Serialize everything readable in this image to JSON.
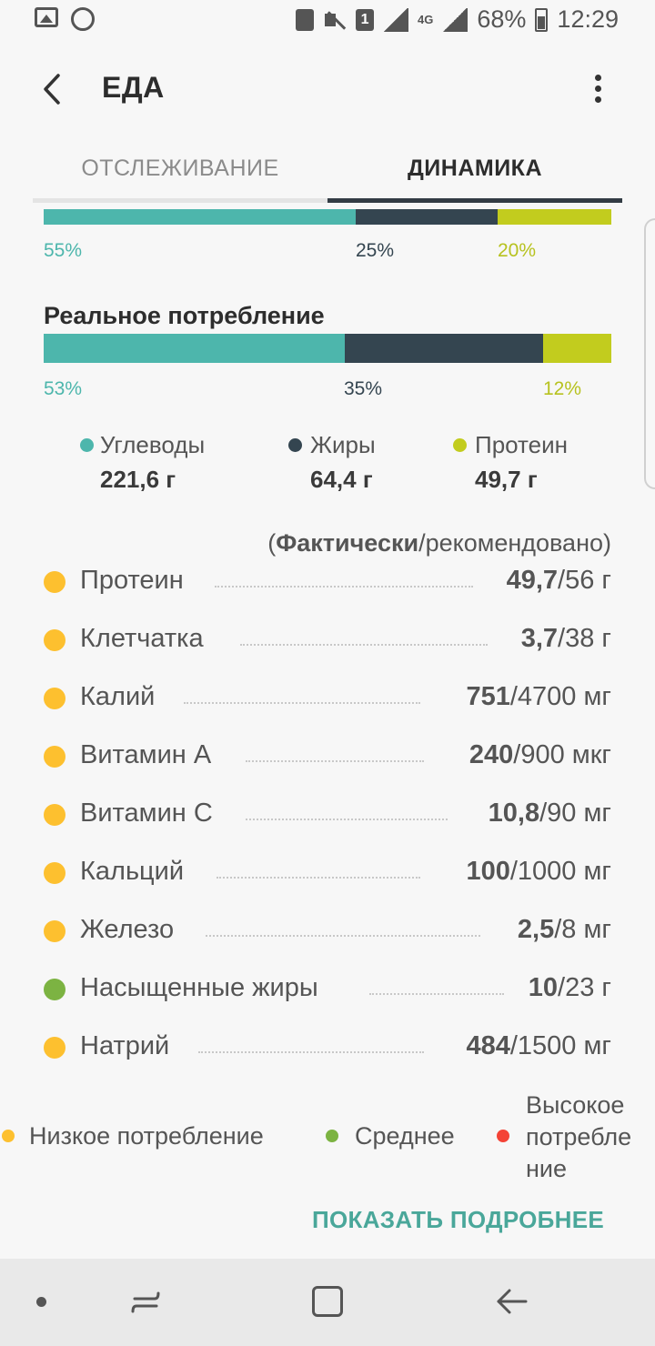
{
  "status_bar": {
    "battery": "68%",
    "time": "12:29",
    "sim": "1",
    "network": "4G"
  },
  "app_bar": {
    "title": "ЕДА"
  },
  "tabs": [
    {
      "label": "ОТСЛЕЖИВАНИЕ",
      "active": false
    },
    {
      "label": "ДИНАМИКА",
      "active": true
    }
  ],
  "recommended_ratio": {
    "carbs_pct": 55,
    "fat_pct": 25,
    "protein_pct": 20,
    "carbs_label": "55%",
    "fat_label": "25%",
    "protein_label": "20%"
  },
  "actual": {
    "title": "Реальное потребление",
    "carbs_pct": 53,
    "fat_pct": 35,
    "protein_pct": 12,
    "carbs_label": "53%",
    "fat_label": "35%",
    "protein_label": "12%"
  },
  "macro_legend": [
    {
      "label": "Углеводы",
      "value": "221,6 г",
      "color": "#4db6ac"
    },
    {
      "label": "Жиры",
      "value": "64,4 г",
      "color": "#344550"
    },
    {
      "label": "Протеин",
      "value": "49,7 г",
      "color": "#c2cc1e"
    }
  ],
  "nutrients_header": {
    "open": "(",
    "actual": "Фактически",
    "rest": "/рекомендовано)"
  },
  "nutrients": [
    {
      "name": "Протеин",
      "actual": "49,7",
      "rec": "/56 г",
      "level": "low"
    },
    {
      "name": "Клетчатка",
      "actual": "3,7",
      "rec": "/38 г",
      "level": "low"
    },
    {
      "name": "Калий",
      "actual": "751",
      "rec": "/4700 мг",
      "level": "low"
    },
    {
      "name": "Витамин A",
      "actual": "240",
      "rec": "/900 мкг",
      "level": "low"
    },
    {
      "name": "Витамин C",
      "actual": "10,8",
      "rec": "/90 мг",
      "level": "low"
    },
    {
      "name": "Кальций",
      "actual": "100",
      "rec": "/1000 мг",
      "level": "low"
    },
    {
      "name": "Железо",
      "actual": "2,5",
      "rec": "/8 мг",
      "level": "low"
    },
    {
      "name": "Насыщенные жиры",
      "actual": "10",
      "rec": "/23 г",
      "level": "mid"
    },
    {
      "name": "Натрий",
      "actual": "484",
      "rec": "/1500 мг",
      "level": "low"
    }
  ],
  "intake_legend": {
    "low": "Низкое потребление",
    "mid": "Среднее",
    "high_line1": "Высокое",
    "high_line2": "потребле",
    "high_line3": "ние",
    "colors": {
      "low": "#fdc02f",
      "mid": "#7cb342",
      "high": "#f44336"
    }
  },
  "show_more": "ПОКАЗАТЬ ПОДРОБНЕЕ"
}
